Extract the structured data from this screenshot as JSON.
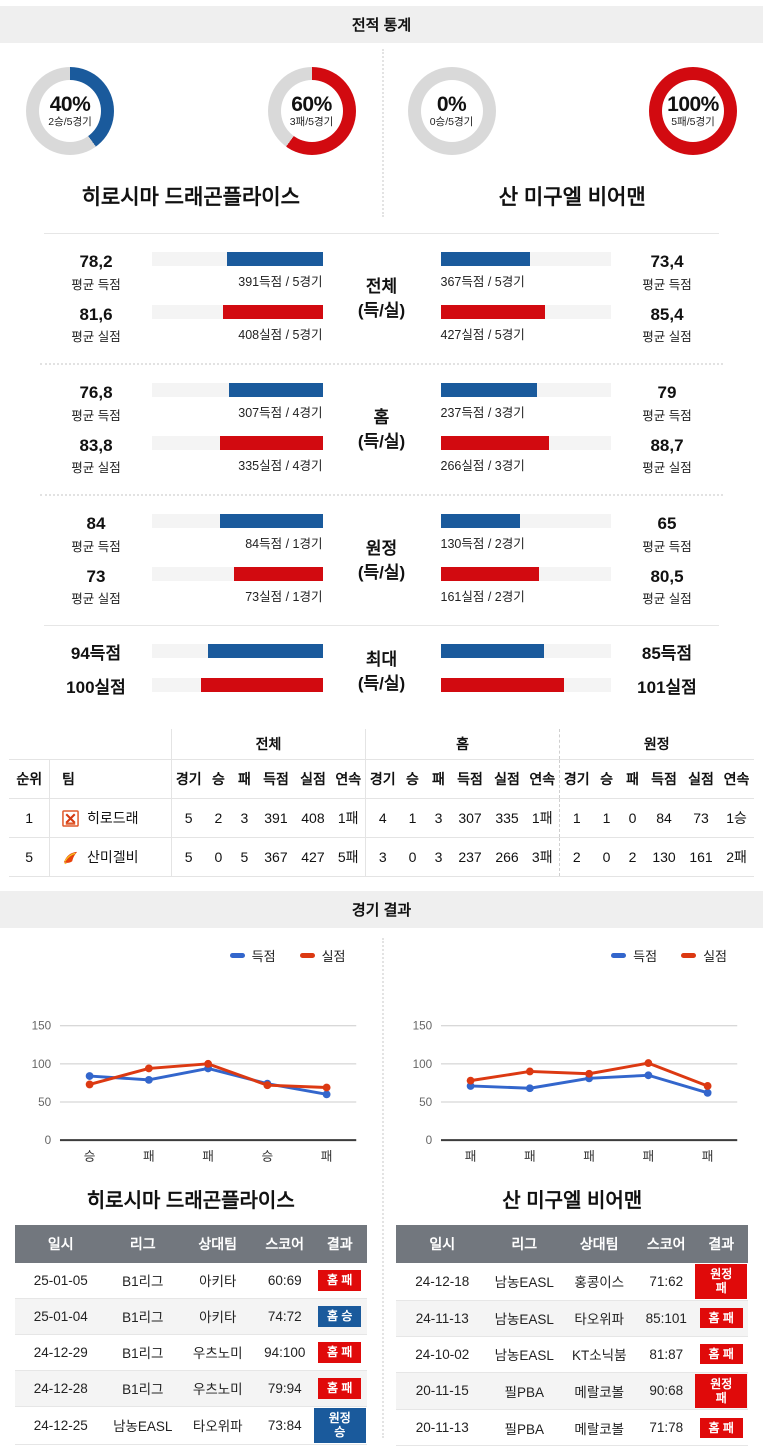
{
  "page": {
    "stats_header": "전적 통계",
    "results_header": "경기 결과"
  },
  "teams": {
    "home": {
      "name": "히로시마 드래곤플라이스",
      "short": "히로드래",
      "logo_icon": "hiroshima-logo"
    },
    "away": {
      "name": "산 미구엘 비어맨",
      "short": "산미겔비",
      "logo_icon": "sanmiguel-logo"
    }
  },
  "colors": {
    "accent_blue": "#1a5a9c",
    "accent_red": "#d20a10",
    "chart_blue": "#3366cc",
    "chart_red": "#dc3912",
    "badge_win": "#1a5a9c",
    "badge_loss": "#e00a0a",
    "donut_track": "#d9d9d9",
    "bar_track": "#f4f4f4",
    "header_bar_bg": "#efefef",
    "table_header_bg": "#72777e"
  },
  "donuts": [
    {
      "pct": 40,
      "label": "40%",
      "sub": "2승/5경기",
      "color": "#1a5a9c"
    },
    {
      "pct": 60,
      "label": "60%",
      "sub": "3패/5경기",
      "color": "#d20a10"
    },
    {
      "pct": 0,
      "label": "0%",
      "sub": "0승/5경기",
      "color": "#d20a10"
    },
    {
      "pct": 100,
      "label": "100%",
      "sub": "5패/5경기",
      "color": "#d20a10"
    }
  ],
  "compare": {
    "bar_max": 140,
    "scored_color": "#1a5a9c",
    "conceded_color": "#d20a10",
    "groups": [
      {
        "title": "전체",
        "subtitle": "(득/실)",
        "left": {
          "scored": {
            "value": "78,2",
            "num": 78.2,
            "label": "평균 득점",
            "detail": "391득점 / 5경기"
          },
          "conceded": {
            "value": "81,6",
            "num": 81.6,
            "label": "평균 실점",
            "detail": "408실점 / 5경기"
          }
        },
        "right": {
          "scored": {
            "value": "73,4",
            "num": 73.4,
            "label": "평균 득점",
            "detail": "367득점 / 5경기"
          },
          "conceded": {
            "value": "85,4",
            "num": 85.4,
            "label": "평균 실점",
            "detail": "427실점 / 5경기"
          }
        }
      },
      {
        "title": "홈",
        "subtitle": "(득/실)",
        "left": {
          "scored": {
            "value": "76,8",
            "num": 76.8,
            "label": "평균 득점",
            "detail": "307득점 / 4경기"
          },
          "conceded": {
            "value": "83,8",
            "num": 83.8,
            "label": "평균 실점",
            "detail": "335실점 / 4경기"
          }
        },
        "right": {
          "scored": {
            "value": "79",
            "num": 79,
            "label": "평균 득점",
            "detail": "237득점 / 3경기"
          },
          "conceded": {
            "value": "88,7",
            "num": 88.7,
            "label": "평균 실점",
            "detail": "266실점 / 3경기"
          }
        }
      },
      {
        "title": "원정",
        "subtitle": "(득/실)",
        "left": {
          "scored": {
            "value": "84",
            "num": 84,
            "label": "평균 득점",
            "detail": "84득점 / 1경기"
          },
          "conceded": {
            "value": "73",
            "num": 73,
            "label": "평균 실점",
            "detail": "73실점 / 1경기"
          }
        },
        "right": {
          "scored": {
            "value": "65",
            "num": 65,
            "label": "평균 득점",
            "detail": "130득점 / 2경기"
          },
          "conceded": {
            "value": "80,5",
            "num": 80.5,
            "label": "평균 실점",
            "detail": "161실점 / 2경기"
          }
        }
      },
      {
        "title": "최대",
        "subtitle": "(득/실)",
        "left": {
          "scored": {
            "value": "94득점",
            "num": 94,
            "label": "",
            "detail": ""
          },
          "conceded": {
            "value": "100실점",
            "num": 100,
            "label": "",
            "detail": ""
          }
        },
        "right": {
          "scored": {
            "value": "85득점",
            "num": 85,
            "label": "",
            "detail": ""
          },
          "conceded": {
            "value": "101실점",
            "num": 101,
            "label": "",
            "detail": ""
          }
        }
      }
    ]
  },
  "standings": {
    "rank_header": "순위",
    "team_header": "팀",
    "group_headers": [
      "전체",
      "홈",
      "원정"
    ],
    "col_headers": [
      "경기",
      "승",
      "패",
      "득점",
      "실점",
      "연속"
    ],
    "rows": [
      {
        "rank": "1",
        "team": "히로드래",
        "logo_icon": "hiroshima-logo",
        "overall": [
          "5",
          "2",
          "3",
          "391",
          "408",
          "1패"
        ],
        "home": [
          "4",
          "1",
          "3",
          "307",
          "335",
          "1패"
        ],
        "away": [
          "1",
          "1",
          "0",
          "84",
          "73",
          "1승"
        ]
      },
      {
        "rank": "5",
        "team": "산미겔비",
        "logo_icon": "sanmiguel-logo",
        "overall": [
          "5",
          "0",
          "5",
          "367",
          "427",
          "5패"
        ],
        "home": [
          "3",
          "0",
          "3",
          "237",
          "266",
          "3패"
        ],
        "away": [
          "2",
          "0",
          "2",
          "130",
          "161",
          "2패"
        ]
      }
    ]
  },
  "chart_data": [
    {
      "type": "line",
      "categories": [
        "승",
        "패",
        "패",
        "승",
        "패"
      ],
      "series": [
        {
          "name": "득점",
          "color": "#3366cc",
          "values": [
            84,
            79,
            94,
            74,
            60
          ]
        },
        {
          "name": "실점",
          "color": "#dc3912",
          "values": [
            73,
            94,
            100,
            72,
            69
          ]
        }
      ],
      "ylim": [
        0,
        150
      ],
      "yticks": [
        0,
        50,
        100,
        150
      ],
      "grid": true,
      "legend_position": "top-right"
    },
    {
      "type": "line",
      "categories": [
        "패",
        "패",
        "패",
        "패",
        "패"
      ],
      "series": [
        {
          "name": "득점",
          "color": "#3366cc",
          "values": [
            71,
            68,
            81,
            85,
            62
          ]
        },
        {
          "name": "실점",
          "color": "#dc3912",
          "values": [
            78,
            90,
            87,
            101,
            71
          ]
        }
      ],
      "ylim": [
        0,
        150
      ],
      "yticks": [
        0,
        50,
        100,
        150
      ],
      "grid": true,
      "legend_position": "top-right"
    }
  ],
  "recent": {
    "headers": [
      "일시",
      "리그",
      "상대팀",
      "스코어",
      "결과"
    ],
    "left": {
      "title": "히로시마 드래곤플라이스",
      "rows": [
        {
          "date": "25-01-05",
          "league": "B1리그",
          "opponent": "아키타",
          "score": "60:69",
          "result": "홈 패",
          "result_type": "loss"
        },
        {
          "date": "25-01-04",
          "league": "B1리그",
          "opponent": "아키타",
          "score": "74:72",
          "result": "홈 승",
          "result_type": "win"
        },
        {
          "date": "24-12-29",
          "league": "B1리그",
          "opponent": "우츠노미",
          "score": "94:100",
          "result": "홈 패",
          "result_type": "loss"
        },
        {
          "date": "24-12-28",
          "league": "B1리그",
          "opponent": "우츠노미",
          "score": "79:94",
          "result": "홈 패",
          "result_type": "loss"
        },
        {
          "date": "24-12-25",
          "league": "남농EASL",
          "opponent": "타오위파",
          "score": "73:84",
          "result": "원정 승",
          "result_type": "win"
        }
      ]
    },
    "right": {
      "title": "산 미구엘 비어맨",
      "rows": [
        {
          "date": "24-12-18",
          "league": "남농EASL",
          "opponent": "홍콩이스",
          "score": "71:62",
          "result": "원정 패",
          "result_type": "loss"
        },
        {
          "date": "24-11-13",
          "league": "남농EASL",
          "opponent": "타오위파",
          "score": "85:101",
          "result": "홈 패",
          "result_type": "loss"
        },
        {
          "date": "24-10-02",
          "league": "남농EASL",
          "opponent": "KT소닉붐",
          "score": "81:87",
          "result": "홈 패",
          "result_type": "loss"
        },
        {
          "date": "20-11-15",
          "league": "필PBA",
          "opponent": "메랄코볼",
          "score": "90:68",
          "result": "원정 패",
          "result_type": "loss"
        },
        {
          "date": "20-11-13",
          "league": "필PBA",
          "opponent": "메랄코볼",
          "score": "71:78",
          "result": "홈 패",
          "result_type": "loss"
        }
      ]
    }
  }
}
